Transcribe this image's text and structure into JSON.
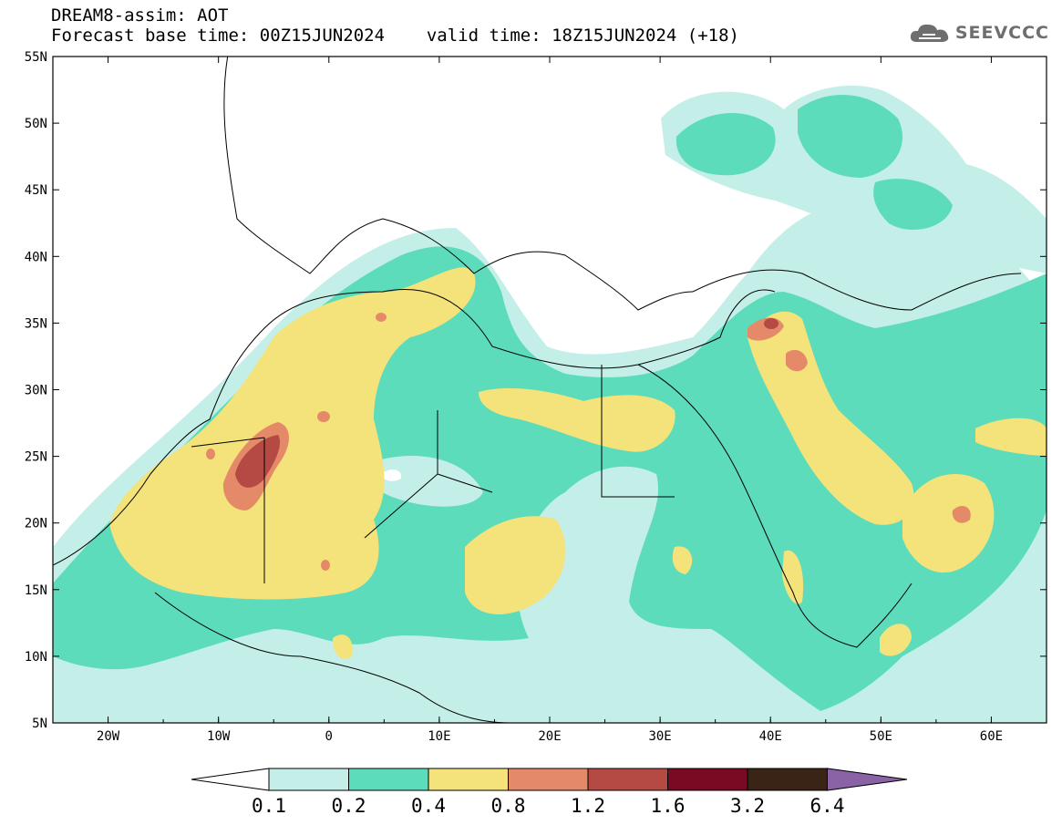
{
  "header": {
    "model_line": "DREAM8-assim: AOT",
    "base_time": "Forecast base time: 00Z15JUN2024",
    "valid_time": "valid time: 18Z15JUN2024 (+18)"
  },
  "brand": {
    "name": "SEEVCCC",
    "icon": "cloud-logo-icon"
  },
  "map": {
    "lat_labels": [
      "55N",
      "50N",
      "45N",
      "40N",
      "35N",
      "30N",
      "25N",
      "20N",
      "15N",
      "10N",
      "5N"
    ],
    "lon_labels": [
      "20W",
      "10W",
      "0",
      "10E",
      "20E",
      "30E",
      "40E",
      "50E",
      "60E"
    ]
  },
  "legend": {
    "colors": [
      "#c4efe8",
      "#5ddcbb",
      "#f4e27a",
      "#e48a68",
      "#b54a45",
      "#7a0a24",
      "#3a2416",
      "#8a63a6"
    ],
    "ticks": [
      "0.1",
      "0.2",
      "0.4",
      "0.8",
      "1.2",
      "1.6",
      "3.2",
      "6.4"
    ]
  }
}
